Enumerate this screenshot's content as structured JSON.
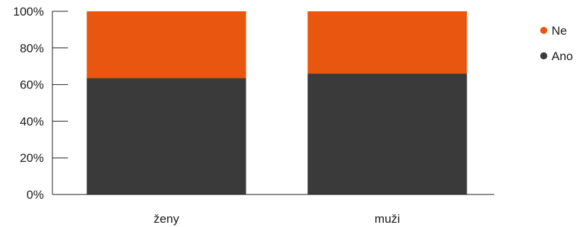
{
  "chart_data": {
    "type": "bar",
    "stacked": true,
    "percent_scale": true,
    "categories": [
      "ženy",
      "muži"
    ],
    "series": [
      {
        "name": "Ano",
        "values": [
          63.5,
          66
        ],
        "color": "#3a3a3a"
      },
      {
        "name": "Ne",
        "values": [
          36.5,
          34
        ],
        "color": "#e8560f"
      }
    ],
    "ylim": [
      0,
      100
    ],
    "yticks": [
      0,
      20,
      40,
      60,
      80,
      100
    ],
    "ytick_labels": [
      "0%",
      "20%",
      "40%",
      "60%",
      "80%",
      "100%"
    ],
    "legend": {
      "position": "right",
      "entries": [
        "Ne",
        "Ano"
      ]
    },
    "grid": false,
    "title": "",
    "xlabel": "",
    "ylabel": ""
  }
}
